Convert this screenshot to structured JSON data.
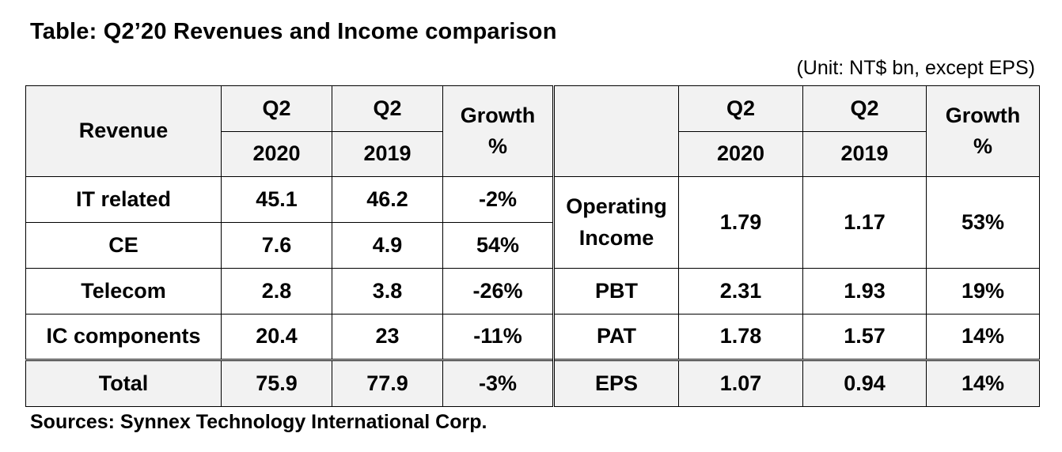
{
  "title": "Table: Q2’20 Revenues and Income comparison",
  "unit": "(Unit: NT$ bn, except EPS)",
  "sources": "Sources: Synnex Technology International Corp.",
  "header": {
    "revenue": "Revenue",
    "q2_a": "Q2",
    "q2_b": "Q2",
    "year_2020": "2020",
    "year_2019": "2019",
    "growth_line1": "Growth",
    "growth_line2": "%",
    "right_q2_a": "Q2",
    "right_q2_b": "Q2",
    "right_year_2020": "2020",
    "right_year_2019": "2019",
    "right_growth_line1": "Growth",
    "right_growth_line2": "%"
  },
  "revenue_rows": [
    {
      "label": "IT related",
      "q2_2020": "45.1",
      "q2_2019": "46.2",
      "growth": "-2%"
    },
    {
      "label": "CE",
      "q2_2020": "7.6",
      "q2_2019": "4.9",
      "growth": "54%"
    },
    {
      "label": "Telecom",
      "q2_2020": "2.8",
      "q2_2019": "3.8",
      "growth": "-26%"
    },
    {
      "label": "IC components",
      "q2_2020": "20.4",
      "q2_2019": "23",
      "growth": "-11%"
    }
  ],
  "revenue_total": {
    "label": "Total",
    "q2_2020": "75.9",
    "q2_2019": "77.9",
    "growth": "-3%"
  },
  "income_rows": [
    {
      "label_line1": "Operating",
      "label_line2": "Income",
      "q2_2020": "1.79",
      "q2_2019": "1.17",
      "growth": "53%"
    },
    {
      "label": "PBT",
      "q2_2020": "2.31",
      "q2_2019": "1.93",
      "growth": "19%"
    },
    {
      "label": "PAT",
      "q2_2020": "1.78",
      "q2_2019": "1.57",
      "growth": "14%"
    }
  ],
  "income_total": {
    "label": "EPS",
    "q2_2020": "1.07",
    "q2_2019": "0.94",
    "growth": "14%"
  }
}
